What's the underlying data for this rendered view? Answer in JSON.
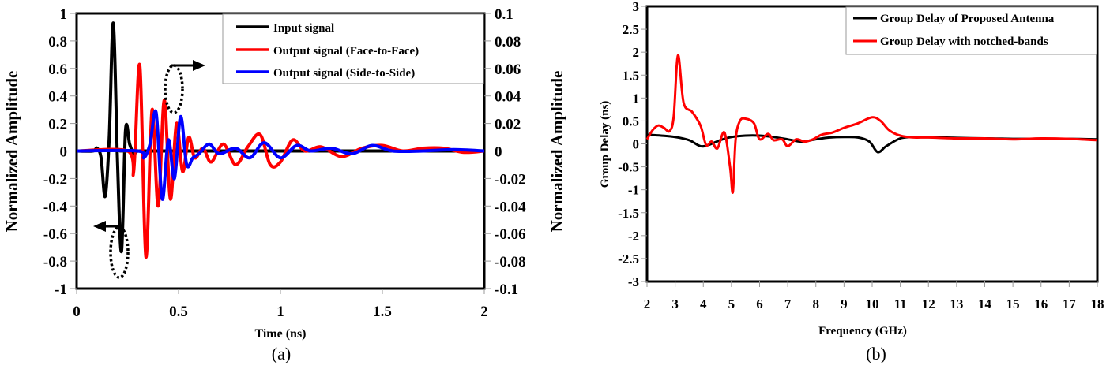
{
  "figure": {
    "caption_a": "(a)",
    "caption_b": "(b)"
  },
  "chart_a": {
    "xlabel": "Time (ns)",
    "ylabel_left": "Normalized Amplitude",
    "ylabel_right": "Normalized Amplitude",
    "x_ticks": [
      "0",
      "0.5",
      "1",
      "1.5",
      "2"
    ],
    "y_left_ticks": [
      "1",
      "0.8",
      "0.6",
      "0.4",
      "0.2",
      "0",
      "-0.2",
      "-0.4",
      "-0.6",
      "-0.8",
      "-1"
    ],
    "y_right_ticks": [
      "0.1",
      "0.08",
      "0.06",
      "0.04",
      "0.02",
      "0",
      "-0.02",
      "-0.04",
      "-0.06",
      "-0.08",
      "-0.1"
    ],
    "legend": [
      {
        "label": "Input signal",
        "color": "#000000"
      },
      {
        "label": "Output signal (Face-to-Face)",
        "color": "#ff0000"
      },
      {
        "label": "Output signal (Side-to-Side)",
        "color": "#0000ff"
      }
    ]
  },
  "chart_b": {
    "xlabel": "Frequency (GHz)",
    "ylabel": "Group Delay (ns)",
    "x_ticks": [
      "2",
      "3",
      "4",
      "5",
      "6",
      "7",
      "8",
      "9",
      "10",
      "11",
      "12",
      "13",
      "14",
      "15",
      "16",
      "17",
      "18"
    ],
    "y_ticks": [
      "3",
      "2.5",
      "2",
      "1.5",
      "1",
      "0.5",
      "0",
      "-0.5",
      "-1",
      "-1.5",
      "-2",
      "-2.5",
      "-3"
    ],
    "legend": [
      {
        "label": "Group Delay of Proposed Antenna",
        "color": "#000000"
      },
      {
        "label": "Group Delay with notched-bands",
        "color": "#ff0000"
      }
    ]
  },
  "chart_data": [
    {
      "type": "line",
      "title": "(a)",
      "xlabel": "Time (ns)",
      "ylabel": "Normalized Amplitude",
      "y2label": "Normalized Amplitude",
      "xlim": [
        0,
        2
      ],
      "ylim": [
        -1,
        1
      ],
      "y2lim": [
        -0.1,
        0.1
      ],
      "grid": false,
      "legend_position": "upper right",
      "annotations": [
        "dashed ellipse with arrow pointing left (input on left axis)",
        "dashed ellipse with arrow pointing right (outputs on right axis)"
      ],
      "series": [
        {
          "name": "Input signal",
          "axis": "left",
          "color": "#000000",
          "x": [
            0,
            0.08,
            0.1,
            0.12,
            0.14,
            0.16,
            0.18,
            0.2,
            0.22,
            0.24,
            0.26,
            0.28,
            0.3,
            0.35,
            2.0
          ],
          "y": [
            0,
            0,
            0.02,
            -0.05,
            -0.33,
            0.1,
            0.93,
            -0.05,
            -0.73,
            0.15,
            0.05,
            -0.02,
            0,
            0,
            0
          ]
        },
        {
          "name": "Output signal (Face-to-Face)",
          "axis": "right",
          "color": "#ff0000",
          "x": [
            0,
            0.25,
            0.28,
            0.31,
            0.34,
            0.37,
            0.4,
            0.43,
            0.46,
            0.49,
            0.52,
            0.55,
            0.58,
            0.62,
            0.66,
            0.72,
            0.78,
            0.84,
            0.9,
            0.95,
            1.0,
            1.06,
            1.12,
            1.2,
            1.3,
            1.4,
            1.5,
            1.6,
            1.7,
            1.8,
            1.9,
            2.0
          ],
          "y": [
            0,
            0,
            -0.015,
            0.062,
            -0.077,
            0.03,
            -0.04,
            0.037,
            -0.035,
            0.02,
            -0.015,
            0.01,
            -0.005,
            0.002,
            -0.008,
            0.005,
            -0.01,
            0.003,
            0.012,
            -0.01,
            -0.008,
            0.008,
            0,
            0.003,
            -0.004,
            0.002,
            0.004,
            0,
            0.002,
            0.002,
            -0.001,
            0
          ]
        },
        {
          "name": "Output signal (Side-to-Side)",
          "axis": "right",
          "color": "#0000ff",
          "x": [
            0,
            0.3,
            0.33,
            0.36,
            0.39,
            0.42,
            0.45,
            0.48,
            0.51,
            0.54,
            0.57,
            0.6,
            0.65,
            0.7,
            0.78,
            0.85,
            0.92,
            1.0,
            1.08,
            1.15,
            1.25,
            1.35,
            1.45,
            1.55,
            1.7,
            1.85,
            2.0
          ],
          "y": [
            0,
            0,
            -0.005,
            0.005,
            0.028,
            -0.035,
            0.008,
            -0.02,
            0.025,
            -0.01,
            -0.005,
            -0.002,
            0.005,
            -0.002,
            0.002,
            -0.005,
            0.006,
            -0.005,
            0.004,
            0,
            0.002,
            -0.002,
            0.004,
            0,
            0,
            0.001,
            0
          ]
        }
      ]
    },
    {
      "type": "line",
      "title": "(b)",
      "xlabel": "Frequency (GHz)",
      "ylabel": "Group Delay (ns)",
      "xlim": [
        2,
        18
      ],
      "ylim": [
        -3,
        3
      ],
      "grid": false,
      "legend_position": "upper right",
      "series": [
        {
          "name": "Group Delay of Proposed Antenna",
          "color": "#000000",
          "x": [
            2,
            2.5,
            3,
            3.5,
            3.9,
            4.2,
            4.6,
            5,
            5.5,
            6,
            6.5,
            7,
            7.5,
            8,
            8.5,
            9,
            9.5,
            9.9,
            10.2,
            10.5,
            11,
            11.5,
            12,
            13,
            14,
            15,
            16,
            17,
            18
          ],
          "y": [
            0.2,
            0.18,
            0.15,
            0.08,
            -0.05,
            -0.02,
            0.08,
            0.15,
            0.18,
            0.18,
            0.15,
            0.1,
            0.05,
            0.1,
            0.14,
            0.15,
            0.14,
            0.05,
            -0.18,
            -0.05,
            0.12,
            0.15,
            0.15,
            0.13,
            0.12,
            0.11,
            0.11,
            0.11,
            0.1
          ]
        },
        {
          "name": "Group Delay with notched-bands",
          "color": "#ff0000",
          "x": [
            2,
            2.2,
            2.4,
            2.6,
            2.8,
            2.95,
            3.1,
            3.3,
            3.6,
            3.9,
            4.1,
            4.3,
            4.5,
            4.75,
            4.95,
            5.05,
            5.15,
            5.3,
            5.5,
            5.8,
            6.0,
            6.3,
            6.5,
            6.8,
            7.0,
            7.3,
            7.6,
            7.9,
            8.2,
            8.6,
            9,
            9.5,
            10,
            10.3,
            10.6,
            11,
            11.5,
            12,
            13,
            14,
            15,
            16,
            17,
            18
          ],
          "y": [
            0.1,
            0.3,
            0.4,
            0.35,
            0.28,
            0.6,
            1.93,
            0.9,
            0.7,
            0.4,
            -0.02,
            0.05,
            -0.1,
            0.25,
            -0.5,
            -1.05,
            0.1,
            0.5,
            0.55,
            0.45,
            0.1,
            0.22,
            0.08,
            0.1,
            -0.05,
            0.1,
            0.05,
            0.1,
            0.2,
            0.25,
            0.35,
            0.45,
            0.58,
            0.5,
            0.3,
            0.18,
            0.14,
            0.14,
            0.12,
            0.12,
            0.1,
            0.12,
            0.11,
            0.08
          ]
        }
      ]
    }
  ]
}
